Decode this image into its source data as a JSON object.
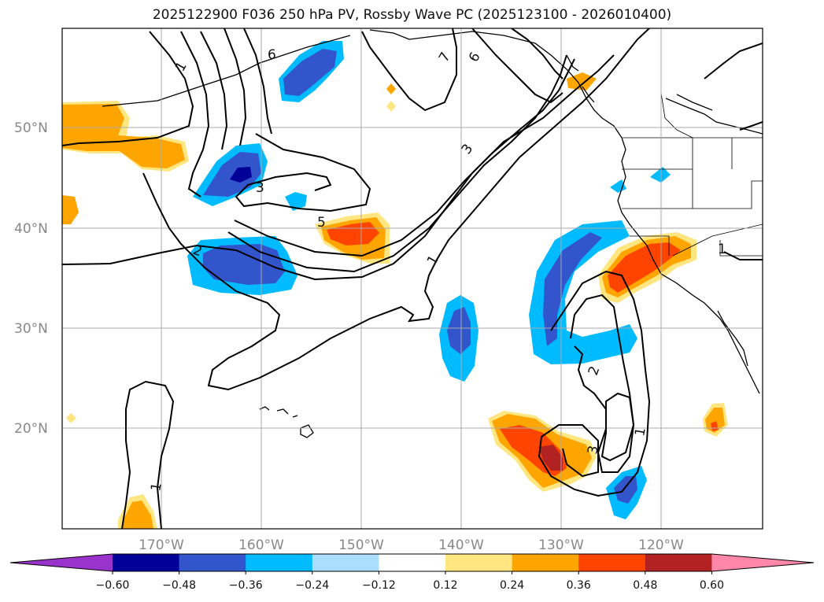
{
  "title": "2025122900 F036 250 hPa PV, Rossby Wave PC (2025123100 - 2026010400)",
  "lat_labels": [
    "50°N",
    "40°N",
    "30°N",
    "20°N"
  ],
  "lon_labels": [
    "170°W",
    "160°W",
    "150°W",
    "140°W",
    "130°W",
    "120°W"
  ],
  "colorbar": {
    "labels": [
      "−0.60",
      "−0.48",
      "−0.36",
      "−0.24",
      "−0.12",
      "0.12",
      "0.24",
      "0.36",
      "0.48",
      "0.60"
    ],
    "colors": [
      "#9933cc",
      "#000099",
      "#3355cc",
      "#00bbff",
      "#aaddff",
      "#ffffff",
      "#ffe680",
      "#ffa500",
      "#ff4400",
      "#b22222",
      "#ff88aa"
    ]
  },
  "contour_labels": [
    "1",
    "6",
    "7",
    "6",
    "3",
    "3",
    "5",
    "2",
    "1",
    "2",
    "3",
    "1",
    "1",
    "1"
  ],
  "colors": {
    "blue_dark": "#000099",
    "blue_mid": "#3355cc",
    "blue_cyan": "#00bbff",
    "blue_light": "#aaddff",
    "yellow": "#ffe680",
    "orange": "#ffa500",
    "red_orange": "#ff4400",
    "dark_red": "#b22222"
  }
}
